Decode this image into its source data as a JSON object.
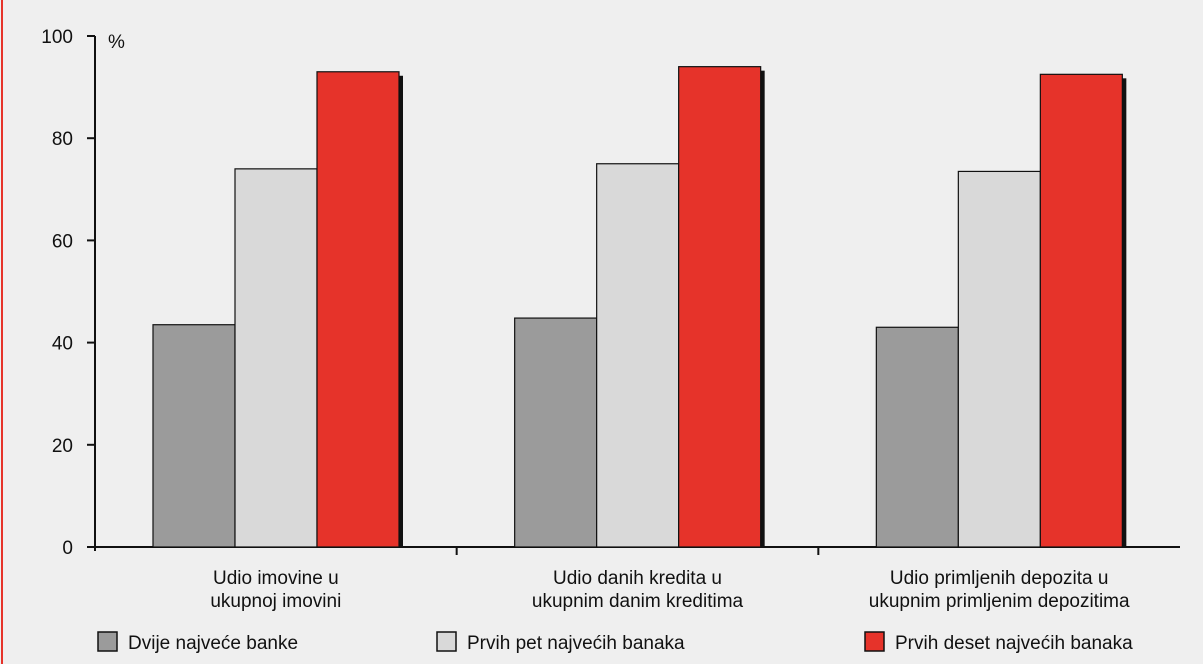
{
  "chart_data": {
    "type": "bar",
    "unit_label": "%",
    "ylim": [
      0,
      100
    ],
    "yticks": [
      0,
      20,
      40,
      60,
      80,
      100
    ],
    "categories": [
      [
        "Udio imovine u",
        "ukupnoj imovini"
      ],
      [
        "Udio danih kredita u",
        "ukupnim danim kreditima"
      ],
      [
        "Udio primljenih depozita u",
        "ukupnim primljenim depozitima"
      ]
    ],
    "series": [
      {
        "name": "Dvije najveće banke",
        "color": "#9b9b9b",
        "values": [
          43.5,
          44.8,
          43.0
        ]
      },
      {
        "name": "Prvih pet najvećih banaka",
        "color": "#d9d9d9",
        "values": [
          74.0,
          75.0,
          73.5
        ]
      },
      {
        "name": "Prvih deset najvećih banaka",
        "color": "#e6332a",
        "values": [
          93.0,
          94.0,
          92.5
        ]
      }
    ],
    "background": "#efefef",
    "accent_border": "#e6332a",
    "grid": false,
    "legend": "bottom"
  }
}
